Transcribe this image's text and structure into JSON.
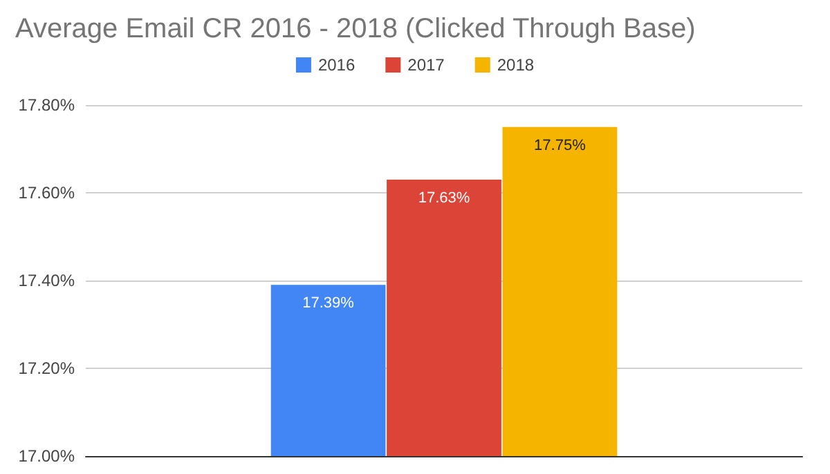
{
  "chart_data": {
    "type": "bar",
    "title": "Average Email CR 2016 - 2018 (Clicked Through Base)",
    "categories": [
      null
    ],
    "series": [
      {
        "name": "2016",
        "color": "#4285f4",
        "values": [
          17.39
        ],
        "value_labels": [
          "17.39%"
        ]
      },
      {
        "name": "2017",
        "color": "#db4437",
        "values": [
          17.63
        ],
        "value_labels": [
          "17.63%"
        ]
      },
      {
        "name": "2018",
        "color": "#f4b400",
        "values": [
          17.75
        ],
        "value_labels": [
          "17.75%"
        ]
      }
    ],
    "ylim": [
      17,
      17.8
    ],
    "yticks": [
      {
        "value": 17,
        "label": "17.00%"
      },
      {
        "value": 17.2,
        "label": "17.20%"
      },
      {
        "value": 17.4,
        "label": "17.40%"
      },
      {
        "value": 17.6,
        "label": "17.60%"
      },
      {
        "value": 17.8,
        "label": "17.80%"
      }
    ],
    "grid": "y",
    "legend": "top"
  }
}
